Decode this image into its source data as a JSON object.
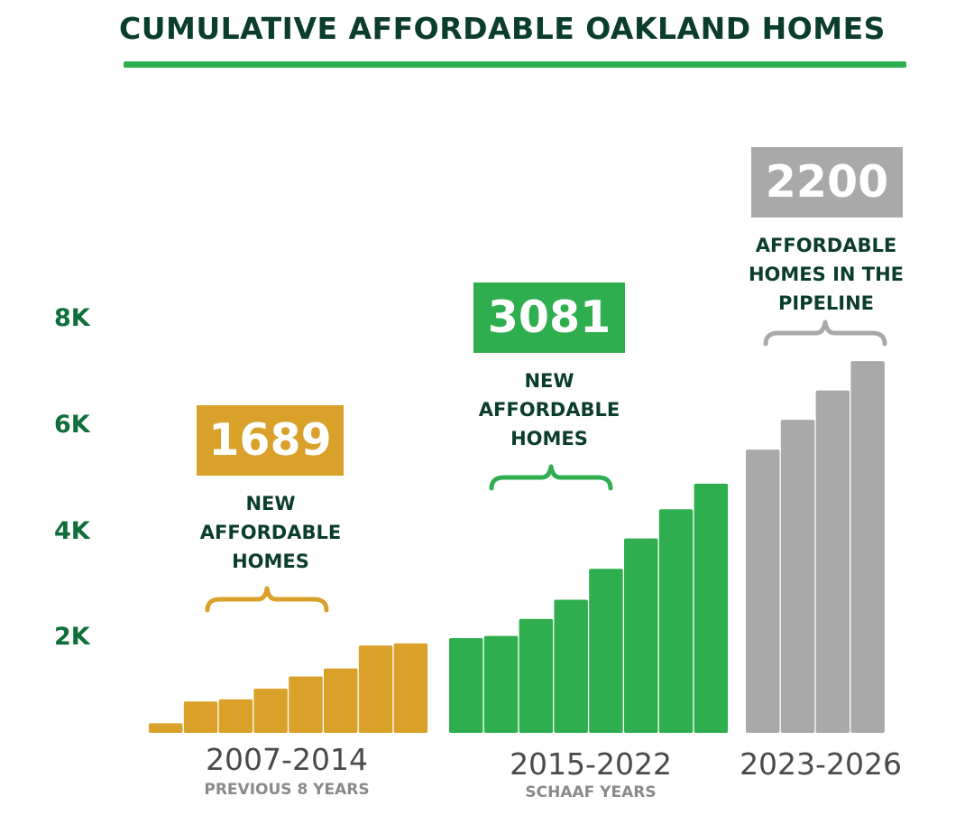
{
  "title": "CUMULATIVE AFFORDABLE OAKLAND HOMES",
  "colors": {
    "title": "#0b3d2c",
    "rule": "#2fae4f",
    "axis": "#0f6e3a",
    "previous": "#d9a02a",
    "schaaf": "#2fae4f",
    "pipeline": "#a9a9a9"
  },
  "callouts": [
    {
      "value": "1689",
      "note": "NEW\nAFFORDABLE\nHOMES"
    },
    {
      "value": "3081",
      "note": "NEW\nAFFORDABLE\nHOMES"
    },
    {
      "value": "2200",
      "note": "AFFORDABLE\nHOMES IN THE\nPIPELINE"
    }
  ],
  "periods": [
    {
      "label": "2007-2014",
      "sub": "PREVIOUS 8 YEARS"
    },
    {
      "label": "2015-2022",
      "sub": "SCHAAF YEARS"
    },
    {
      "label": "2023-2026",
      "sub": ""
    }
  ],
  "chart_data": {
    "type": "bar",
    "title": "CUMULATIVE AFFORDABLE OAKLAND HOMES",
    "yticks": [
      "2K",
      "4K",
      "6K",
      "8K"
    ],
    "ylim": [
      0,
      8000
    ],
    "grid": false,
    "series": [
      {
        "values": [
          180,
          590,
          630,
          830,
          1060,
          1210,
          1640,
          1680
        ]
      },
      {
        "values": [
          1780,
          1820,
          2140,
          2500,
          3080,
          3650,
          4200,
          4680
        ]
      },
      {
        "values": [
          5320,
          5880,
          6430,
          6980
        ]
      }
    ]
  }
}
